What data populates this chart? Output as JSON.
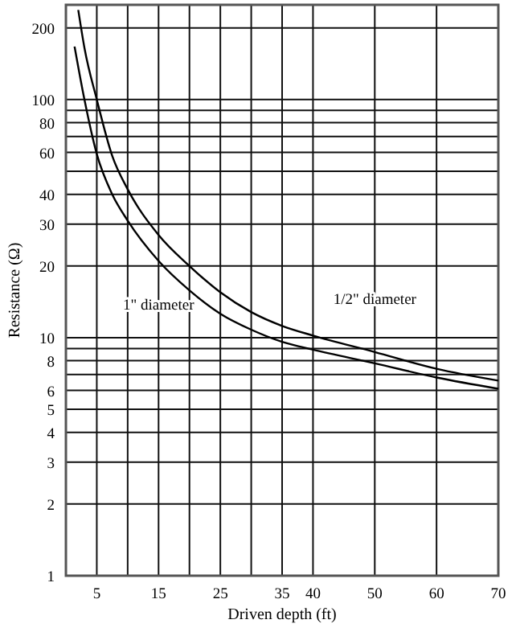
{
  "chart_data": {
    "type": "line",
    "xlabel": "Driven depth (ft)",
    "ylabel": "Resistance (Ω)",
    "log": "y",
    "grid": true,
    "marker": "none",
    "line_style": "solid",
    "xlim": [
      0,
      70
    ],
    "ylim": [
      1,
      250
    ],
    "xticks": [
      5,
      {
        "value": 10,
        "label": null
      },
      15,
      {
        "value": 20,
        "label": null
      },
      25,
      {
        "value": 30,
        "label": null
      },
      35,
      40,
      50,
      60,
      70
    ],
    "yticks": [
      1,
      2,
      3,
      4,
      5,
      6,
      {
        "value": 7,
        "label": null
      },
      8,
      {
        "value": 9,
        "label": null
      },
      10,
      20,
      30,
      40,
      {
        "value": 50,
        "label": null
      },
      60,
      {
        "value": 70,
        "label": null
      },
      80,
      {
        "value": 90,
        "label": null
      },
      100,
      200
    ],
    "series": [
      {
        "name": "1/2\" diameter",
        "color": "#000000",
        "x": [
          2,
          3,
          5,
          7.5,
          10,
          15,
          20,
          25,
          30,
          35,
          40,
          50,
          60,
          70
        ],
        "values": [
          238,
          165,
          100,
          58,
          42,
          27,
          20,
          15.5,
          12.8,
          11.2,
          10.2,
          8.7,
          7.4,
          6.6
        ]
      },
      {
        "name": "1\" diameter",
        "color": "#000000",
        "x": [
          1.4,
          3,
          5,
          7.5,
          10,
          15,
          20,
          25,
          30,
          35,
          40,
          50,
          60,
          70
        ],
        "values": [
          167,
          100,
          59,
          40,
          31,
          21,
          15.8,
          12.6,
          10.8,
          9.6,
          8.9,
          7.8,
          6.8,
          6.1
        ]
      }
    ]
  }
}
